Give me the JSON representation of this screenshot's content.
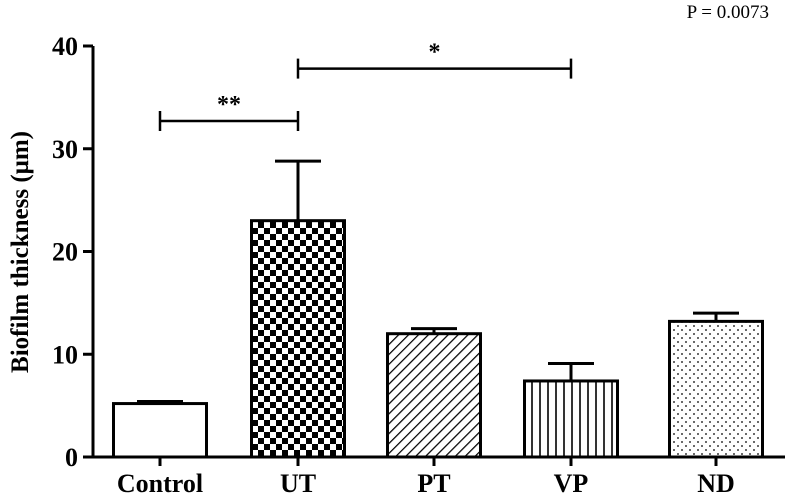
{
  "annotation": "P = 0.0073",
  "chart_data": {
    "type": "bar",
    "categories": [
      "Control",
      "UT",
      "PT",
      "VP",
      "ND"
    ],
    "values": [
      5.2,
      23.0,
      12.0,
      7.4,
      13.2
    ],
    "errors": [
      0.2,
      5.8,
      0.5,
      1.7,
      0.8
    ],
    "patterns": [
      "none",
      "checkerboard",
      "diagonal-hatch",
      "vertical-lines",
      "dots"
    ],
    "xlabel": "",
    "ylabel": "Biofilm thickness (μm)",
    "ylim": [
      0,
      40
    ],
    "yticks": [
      0,
      10,
      20,
      30,
      40
    ],
    "grid": false,
    "significance": [
      {
        "from": "Control",
        "to": "UT",
        "label": "**",
        "y": 32.7
      },
      {
        "from": "UT",
        "to": "VP",
        "label": "*",
        "y": 37.8
      }
    ]
  }
}
